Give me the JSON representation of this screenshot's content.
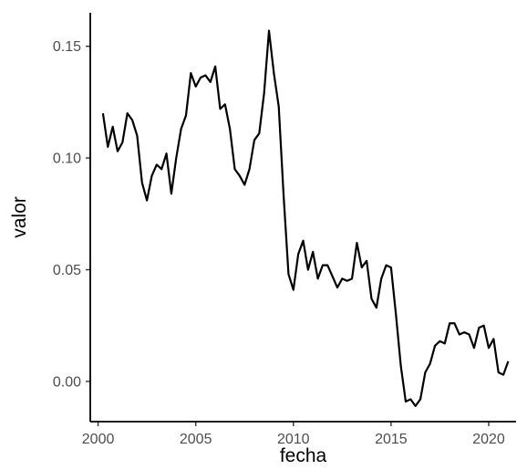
{
  "chart_data": {
    "type": "line",
    "title": "",
    "xlabel": "fecha",
    "ylabel": "valor",
    "xlim": [
      1999.6,
      2021.4
    ],
    "ylim": [
      -0.018,
      0.165
    ],
    "x_ticks": [
      2000,
      2005,
      2010,
      2015,
      2020
    ],
    "y_ticks": [
      0.0,
      0.05,
      0.1,
      0.15
    ],
    "y_tick_labels": [
      "0.00",
      "0.05",
      "0.10",
      "0.15"
    ],
    "grid": false,
    "legend": "none",
    "line_color": "#000000",
    "series": [
      {
        "x": [
          2000.25,
          2000.5,
          2000.75,
          2001.0,
          2001.25,
          2001.5,
          2001.75,
          2002.0,
          2002.25,
          2002.5,
          2002.75,
          2003.0,
          2003.25,
          2003.5,
          2003.75,
          2004.0,
          2004.25,
          2004.5,
          2004.75,
          2005.0,
          2005.25,
          2005.5,
          2005.75,
          2006.0,
          2006.25,
          2006.5,
          2006.75,
          2007.0,
          2007.25,
          2007.5,
          2007.75,
          2008.0,
          2008.25,
          2008.5,
          2008.75,
          2009.0,
          2009.25,
          2009.5,
          2009.75,
          2010.0,
          2010.25,
          2010.5,
          2010.75,
          2011.0,
          2011.25,
          2011.5,
          2011.75,
          2012.0,
          2012.25,
          2012.5,
          2012.75,
          2013.0,
          2013.25,
          2013.5,
          2013.75,
          2014.0,
          2014.25,
          2014.5,
          2014.75,
          2015.0,
          2015.25,
          2015.5,
          2015.75,
          2016.0,
          2016.25,
          2016.5,
          2016.75,
          2017.0,
          2017.25,
          2017.5,
          2017.75,
          2018.0,
          2018.25,
          2018.5,
          2018.75,
          2019.0,
          2019.25,
          2019.5,
          2019.75,
          2020.0,
          2020.25,
          2020.5,
          2020.75,
          2021.0
        ],
        "values": [
          0.12,
          0.105,
          0.114,
          0.103,
          0.107,
          0.12,
          0.117,
          0.11,
          0.089,
          0.081,
          0.092,
          0.097,
          0.095,
          0.102,
          0.084,
          0.1,
          0.113,
          0.119,
          0.138,
          0.132,
          0.136,
          0.137,
          0.134,
          0.141,
          0.122,
          0.124,
          0.113,
          0.095,
          0.092,
          0.088,
          0.095,
          0.108,
          0.111,
          0.129,
          0.157,
          0.138,
          0.123,
          0.083,
          0.048,
          0.041,
          0.057,
          0.063,
          0.05,
          0.058,
          0.046,
          0.052,
          0.052,
          0.047,
          0.042,
          0.046,
          0.045,
          0.046,
          0.062,
          0.051,
          0.054,
          0.037,
          0.033,
          0.046,
          0.052,
          0.051,
          0.03,
          0.007,
          -0.009,
          -0.008,
          -0.011,
          -0.008,
          0.004,
          0.008,
          0.016,
          0.018,
          0.017,
          0.026,
          0.026,
          0.021,
          0.022,
          0.021,
          0.015,
          0.024,
          0.025,
          0.015,
          0.019,
          0.004,
          0.003,
          0.009
        ]
      }
    ]
  }
}
